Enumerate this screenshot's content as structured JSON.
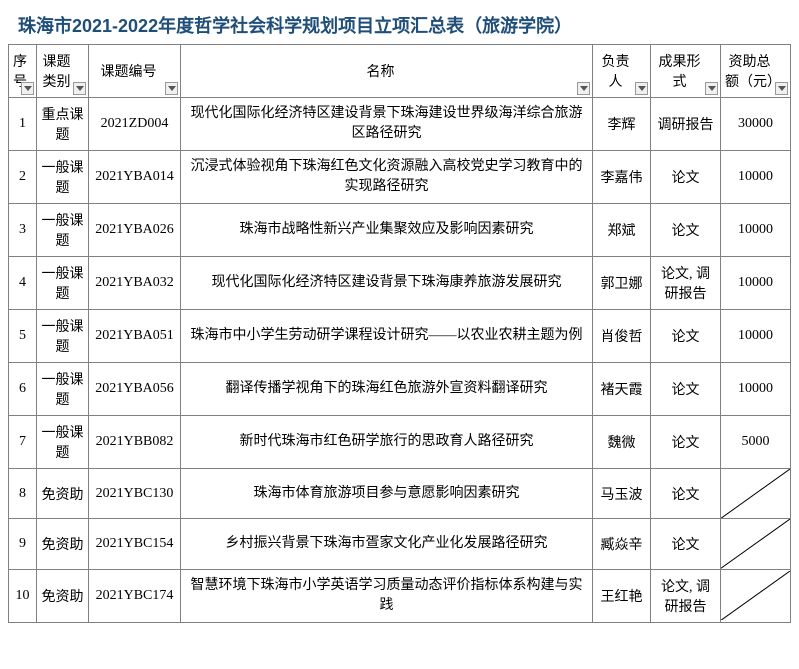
{
  "title": "珠海市2021-2022年度哲学社会科学规划项目立项汇总表（旅游学院）",
  "headers": {
    "seq": "序号",
    "category": "课题类别",
    "code": "课题编号",
    "name": "名称",
    "person": "负责人",
    "form": "成果形式",
    "amount": "资助总额（元）"
  },
  "rows": [
    {
      "seq": "1",
      "category": "重点课题",
      "code": "2021ZD004",
      "name": "现代化国际化经济特区建设背景下珠海建设世界级海洋综合旅游区路径研究",
      "person": "李辉",
      "form": "调研报告",
      "amount": "30000"
    },
    {
      "seq": "2",
      "category": "一般课题",
      "code": "2021YBA014",
      "name": "沉浸式体验视角下珠海红色文化资源融入高校党史学习教育中的实现路径研究",
      "person": "李嘉伟",
      "form": "论文",
      "amount": "10000"
    },
    {
      "seq": "3",
      "category": "一般课题",
      "code": "2021YBA026",
      "name": "珠海市战略性新兴产业集聚效应及影响因素研究",
      "person": "郑斌",
      "form": "论文",
      "amount": "10000"
    },
    {
      "seq": "4",
      "category": "一般课题",
      "code": "2021YBA032",
      "name": "现代化国际化经济特区建设背景下珠海康养旅游发展研究",
      "person": "郭卫娜",
      "form": "论文, 调研报告",
      "amount": "10000"
    },
    {
      "seq": "5",
      "category": "一般课题",
      "code": "2021YBA051",
      "name": "珠海市中小学生劳动研学课程设计研究——以农业农耕主题为例",
      "person": "肖俊哲",
      "form": "论文",
      "amount": "10000"
    },
    {
      "seq": "6",
      "category": "一般课题",
      "code": "2021YBA056",
      "name": "翻译传播学视角下的珠海红色旅游外宣资料翻译研究",
      "person": "褚天霞",
      "form": "论文",
      "amount": "10000"
    },
    {
      "seq": "7",
      "category": "一般课题",
      "code": "2021YBB082",
      "name": "新时代珠海市红色研学旅行的思政育人路径研究",
      "person": "魏微",
      "form": "论文",
      "amount": "5000"
    },
    {
      "seq": "8",
      "category": "免资助",
      "code": "2021YBC130",
      "name": "珠海市体育旅游项目参与意愿影响因素研究",
      "person": "马玉波",
      "form": "论文",
      "amount": "DIAG"
    },
    {
      "seq": "9",
      "category": "免资助",
      "code": "2021YBC154",
      "name": "乡村振兴背景下珠海市疍家文化产业化发展路径研究",
      "person": "臧焱辛",
      "form": "论文",
      "amount": "DIAG"
    },
    {
      "seq": "10",
      "category": "免资助",
      "code": "2021YBC174",
      "name": "智慧环境下珠海市小学英语学习质量动态评价指标体系构建与实践",
      "person": "王红艳",
      "form": "论文, 调研报告",
      "amount": "DIAG"
    }
  ],
  "colors": {
    "title_color": "#1f4e79",
    "border_color": "#808080",
    "filter_border": "#999999",
    "filter_bg": "#f0f0f0",
    "diag_line": "#000000"
  }
}
